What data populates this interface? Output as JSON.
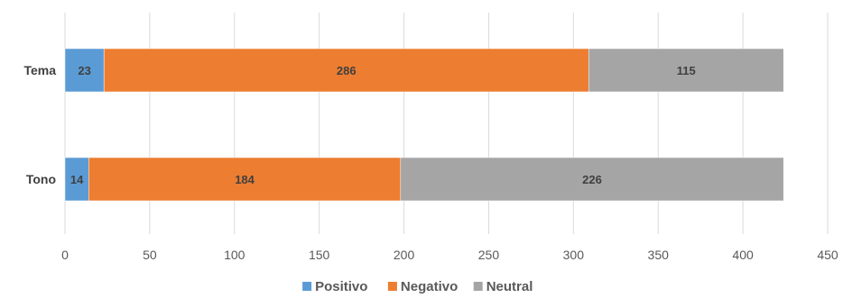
{
  "chart_data": {
    "type": "bar",
    "orientation": "horizontal",
    "stacked": true,
    "categories": [
      "Tema",
      "Tono"
    ],
    "series": [
      {
        "name": "Positivo",
        "color": "#5B9BD5",
        "values": [
          23,
          14
        ]
      },
      {
        "name": "Negativo",
        "color": "#ED7D31",
        "values": [
          286,
          184
        ]
      },
      {
        "name": "Neutral",
        "color": "#A5A5A5",
        "values": [
          115,
          226
        ]
      }
    ],
    "xlim": [
      0,
      450
    ],
    "xticks": [
      0,
      50,
      100,
      150,
      200,
      250,
      300,
      350,
      400,
      450
    ],
    "grid": true,
    "legend_position": "bottom",
    "data_labels": true,
    "title": "",
    "xlabel": "",
    "ylabel": ""
  }
}
